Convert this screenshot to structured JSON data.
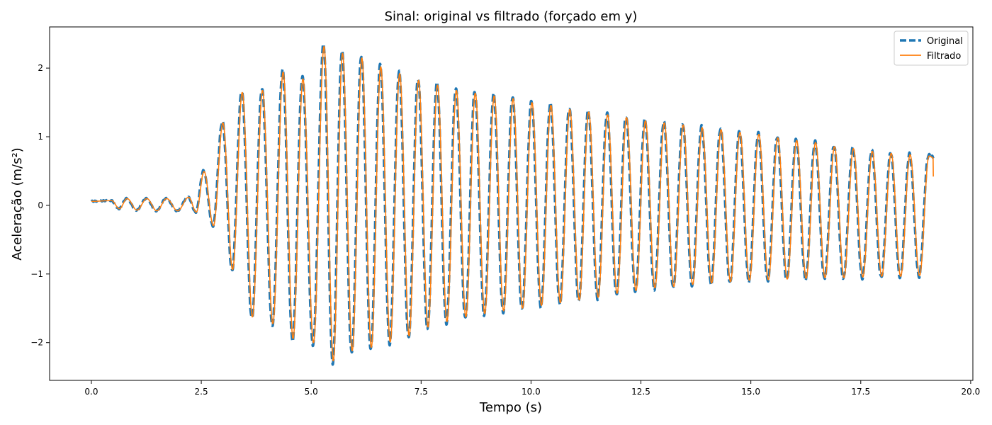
{
  "chart_data": {
    "type": "line",
    "title": "Sinal: original vs filtrado (forçado em y)",
    "xlabel": "Tempo (s)",
    "ylabel": "Aceleração (m/s²)",
    "xlim": [
      -0.95,
      20.05
    ],
    "ylim": [
      -2.55,
      2.6
    ],
    "x_ticks": [
      0.0,
      2.5,
      5.0,
      7.5,
      10.0,
      12.5,
      15.0,
      17.5,
      20.0
    ],
    "x_tick_labels": [
      "0.0",
      "2.5",
      "5.0",
      "7.5",
      "10.0",
      "12.5",
      "15.0",
      "17.5",
      "20.0"
    ],
    "y_ticks": [
      -2,
      -1,
      0,
      1,
      2
    ],
    "y_tick_labels": [
      "−2",
      "−1",
      "0",
      "1",
      "2"
    ],
    "grid": false,
    "legend": "top-right",
    "colors": {
      "original": "#1f77b4",
      "filtrado": "#ff7f0e"
    },
    "signal_peaks": {
      "t": [
        0.45,
        0.8,
        1.25,
        1.7,
        2.2,
        2.55,
        2.98,
        3.42,
        3.88,
        4.35,
        4.8,
        5.28,
        5.7,
        6.14,
        6.57,
        7.0,
        7.43,
        7.86,
        8.29,
        8.72,
        9.15,
        9.58,
        10.01,
        10.44,
        10.87,
        11.3,
        11.73,
        12.16,
        12.59,
        13.02,
        13.45,
        13.88,
        14.31,
        14.74,
        15.17,
        15.6,
        16.03,
        16.46,
        16.89,
        17.32,
        17.75,
        18.18,
        18.61,
        19.04
      ],
      "max": [
        0.07,
        0.1,
        0.1,
        0.1,
        0.12,
        0.5,
        1.22,
        1.67,
        1.7,
        1.97,
        1.87,
        2.35,
        2.25,
        2.18,
        2.05,
        1.95,
        1.85,
        1.78,
        1.7,
        1.66,
        1.62,
        1.58,
        1.52,
        1.48,
        1.42,
        1.38,
        1.34,
        1.3,
        1.25,
        1.22,
        1.19,
        1.15,
        1.12,
        1.08,
        1.05,
        1.0,
        0.96,
        0.93,
        0.87,
        0.84,
        0.8,
        0.77,
        0.75,
        0.73
      ],
      "min": [
        -0.05,
        -0.07,
        -0.08,
        -0.08,
        -0.1,
        -0.3,
        -0.95,
        -1.65,
        -1.75,
        -1.97,
        -2.03,
        -2.3,
        -2.15,
        -2.1,
        -2.02,
        -1.93,
        -1.8,
        -1.72,
        -1.65,
        -1.6,
        -1.56,
        -1.52,
        -1.48,
        -1.44,
        -1.4,
        -1.36,
        -1.3,
        -1.26,
        -1.22,
        -1.2,
        -1.17,
        -1.15,
        -1.13,
        -1.11,
        -1.1,
        -1.09,
        -1.08,
        -1.07,
        -1.07,
        -1.06,
        -1.05,
        -1.05,
        -1.04,
        -1.04
      ]
    },
    "series": [
      {
        "name": "Original",
        "style": "dashed",
        "color": "#1f77b4"
      },
      {
        "name": "Filtrado",
        "style": "solid",
        "color": "#ff7f0e"
      }
    ]
  }
}
